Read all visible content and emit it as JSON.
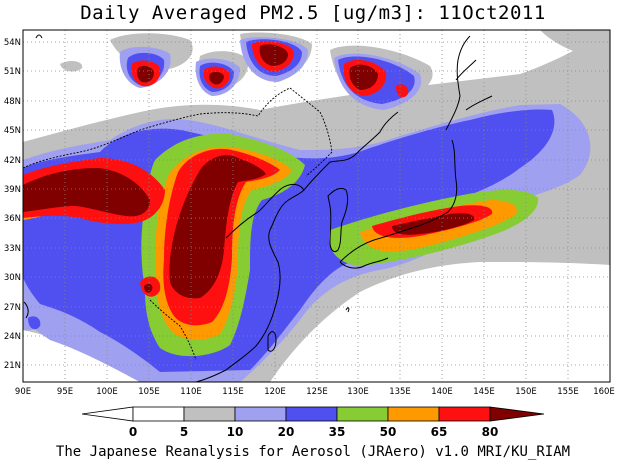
{
  "title": "Daily Averaged PM2.5 [ug/m3]: 11Oct2011",
  "footer": "The Japanese Reanalysis for Aerosol (JRAero) v1.0 MRI/KU_RIAM",
  "map": {
    "lon_range": [
      90,
      160
    ],
    "lat_range": [
      19.5,
      55.5
    ],
    "lon_ticks": [
      "90E",
      "95E",
      "100E",
      "105E",
      "110E",
      "115E",
      "120E",
      "125E",
      "130E",
      "135E",
      "140E",
      "145E",
      "150E",
      "155E",
      "160E"
    ],
    "lat_ticks": [
      "54N",
      "51N",
      "48N",
      "45N",
      "42N",
      "39N",
      "36N",
      "33N",
      "30N",
      "27N",
      "24N",
      "21N"
    ],
    "grid": "dotted"
  },
  "colorbar": {
    "levels": [
      "0",
      "5",
      "10",
      "20",
      "35",
      "50",
      "65",
      "80"
    ],
    "colors": [
      "#ffffff",
      "#c0c0c0",
      "#a0a0f0",
      "#5050f0",
      "#88cc33",
      "#ff9900",
      "#ff1010",
      "#800000"
    ]
  }
}
